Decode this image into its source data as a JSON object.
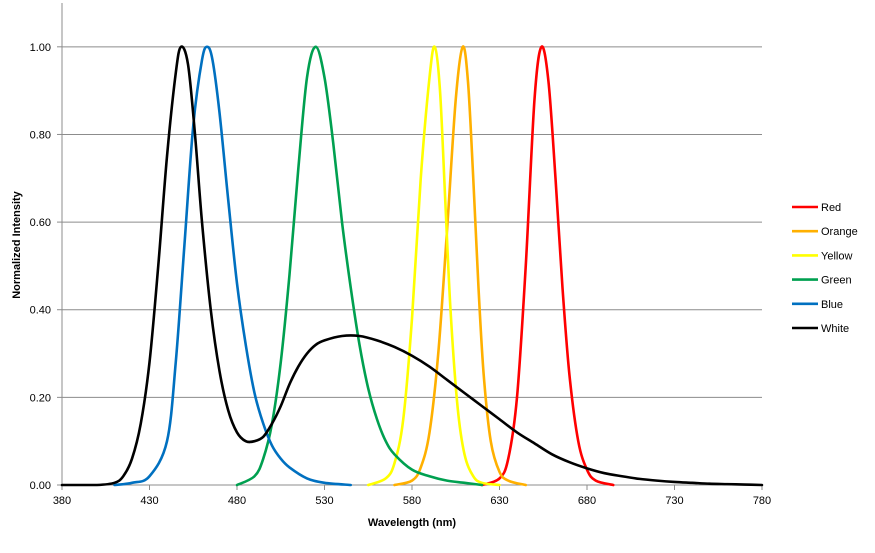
{
  "chart_data": {
    "type": "line",
    "title": "",
    "xlabel": "Wavelength (nm)",
    "ylabel": "Normalized Intensity",
    "xlim": [
      380,
      780
    ],
    "ylim": [
      0,
      1.1
    ],
    "x_ticks": [
      380,
      430,
      480,
      530,
      580,
      630,
      680,
      730,
      780
    ],
    "x_tick_labels": [
      "380",
      "430",
      "480",
      "530",
      "580",
      "630",
      "680",
      "730",
      "780"
    ],
    "y_ticks": [
      0,
      0.2,
      0.4,
      0.6,
      0.8,
      1.0
    ],
    "y_tick_labels": [
      "0.00",
      "0.20",
      "0.40",
      "0.60",
      "0.80",
      "1.00"
    ],
    "grid": "horizontal",
    "legend_position": "right",
    "series": [
      {
        "name": "Red",
        "color": "#ff0000",
        "points": [
          [
            620,
            0
          ],
          [
            630,
            0.015
          ],
          [
            635,
            0.06
          ],
          [
            640,
            0.2
          ],
          [
            645,
            0.5
          ],
          [
            650,
            0.88
          ],
          [
            654,
            1.0
          ],
          [
            658,
            0.92
          ],
          [
            662,
            0.7
          ],
          [
            666,
            0.45
          ],
          [
            670,
            0.25
          ],
          [
            675,
            0.1
          ],
          [
            680,
            0.035
          ],
          [
            685,
            0.01
          ],
          [
            695,
            0
          ]
        ]
      },
      {
        "name": "Orange",
        "color": "#ffb000",
        "points": [
          [
            570,
            0
          ],
          [
            580,
            0.01
          ],
          [
            585,
            0.04
          ],
          [
            590,
            0.12
          ],
          [
            595,
            0.3
          ],
          [
            600,
            0.58
          ],
          [
            605,
            0.88
          ],
          [
            609,
            1.0
          ],
          [
            612,
            0.92
          ],
          [
            615,
            0.7
          ],
          [
            618,
            0.45
          ],
          [
            621,
            0.25
          ],
          [
            625,
            0.1
          ],
          [
            630,
            0.03
          ],
          [
            635,
            0.01
          ],
          [
            645,
            0
          ]
        ]
      },
      {
        "name": "Yellow",
        "color": "#ffff00",
        "points": [
          [
            555,
            0
          ],
          [
            565,
            0.015
          ],
          [
            570,
            0.05
          ],
          [
            575,
            0.15
          ],
          [
            580,
            0.38
          ],
          [
            585,
            0.7
          ],
          [
            590,
            0.93
          ],
          [
            593,
            1.0
          ],
          [
            596,
            0.9
          ],
          [
            599,
            0.65
          ],
          [
            602,
            0.4
          ],
          [
            606,
            0.18
          ],
          [
            610,
            0.07
          ],
          [
            615,
            0.02
          ],
          [
            620,
            0.005
          ],
          [
            630,
            0
          ]
        ]
      },
      {
        "name": "Green",
        "color": "#00a050",
        "points": [
          [
            480,
            0
          ],
          [
            490,
            0.02
          ],
          [
            495,
            0.06
          ],
          [
            500,
            0.14
          ],
          [
            505,
            0.28
          ],
          [
            510,
            0.48
          ],
          [
            515,
            0.72
          ],
          [
            520,
            0.93
          ],
          [
            525,
            1.0
          ],
          [
            530,
            0.93
          ],
          [
            535,
            0.78
          ],
          [
            540,
            0.6
          ],
          [
            545,
            0.45
          ],
          [
            550,
            0.32
          ],
          [
            555,
            0.22
          ],
          [
            560,
            0.15
          ],
          [
            565,
            0.1
          ],
          [
            570,
            0.07
          ],
          [
            580,
            0.035
          ],
          [
            590,
            0.02
          ],
          [
            600,
            0.01
          ],
          [
            610,
            0.005
          ],
          [
            620,
            0
          ]
        ]
      },
      {
        "name": "Blue",
        "color": "#0070c0",
        "points": [
          [
            410,
            0
          ],
          [
            420,
            0.005
          ],
          [
            430,
            0.02
          ],
          [
            440,
            0.1
          ],
          [
            445,
            0.28
          ],
          [
            450,
            0.55
          ],
          [
            455,
            0.82
          ],
          [
            460,
            0.97
          ],
          [
            463,
            1.0
          ],
          [
            466,
            0.97
          ],
          [
            470,
            0.85
          ],
          [
            475,
            0.65
          ],
          [
            480,
            0.46
          ],
          [
            485,
            0.32
          ],
          [
            490,
            0.21
          ],
          [
            495,
            0.14
          ],
          [
            500,
            0.09
          ],
          [
            505,
            0.06
          ],
          [
            510,
            0.04
          ],
          [
            520,
            0.015
          ],
          [
            530,
            0.005
          ],
          [
            545,
            0
          ]
        ]
      },
      {
        "name": "White",
        "color": "#000000",
        "points": [
          [
            380,
            0
          ],
          [
            400,
            0
          ],
          [
            410,
            0.005
          ],
          [
            415,
            0.02
          ],
          [
            420,
            0.06
          ],
          [
            425,
            0.14
          ],
          [
            430,
            0.28
          ],
          [
            435,
            0.5
          ],
          [
            440,
            0.75
          ],
          [
            445,
            0.94
          ],
          [
            448,
            1.0
          ],
          [
            452,
            0.96
          ],
          [
            456,
            0.8
          ],
          [
            460,
            0.6
          ],
          [
            465,
            0.4
          ],
          [
            470,
            0.26
          ],
          [
            475,
            0.17
          ],
          [
            480,
            0.12
          ],
          [
            485,
            0.1
          ],
          [
            490,
            0.1
          ],
          [
            495,
            0.11
          ],
          [
            500,
            0.14
          ],
          [
            505,
            0.18
          ],
          [
            510,
            0.23
          ],
          [
            515,
            0.27
          ],
          [
            520,
            0.3
          ],
          [
            525,
            0.32
          ],
          [
            530,
            0.33
          ],
          [
            540,
            0.34
          ],
          [
            550,
            0.34
          ],
          [
            560,
            0.33
          ],
          [
            570,
            0.315
          ],
          [
            580,
            0.295
          ],
          [
            590,
            0.27
          ],
          [
            600,
            0.24
          ],
          [
            610,
            0.21
          ],
          [
            620,
            0.18
          ],
          [
            630,
            0.15
          ],
          [
            640,
            0.12
          ],
          [
            650,
            0.095
          ],
          [
            660,
            0.07
          ],
          [
            670,
            0.052
          ],
          [
            680,
            0.038
          ],
          [
            690,
            0.027
          ],
          [
            700,
            0.02
          ],
          [
            710,
            0.014
          ],
          [
            720,
            0.01
          ],
          [
            730,
            0.007
          ],
          [
            740,
            0.005
          ],
          [
            750,
            0.003
          ],
          [
            760,
            0.002
          ],
          [
            770,
            0.001
          ],
          [
            780,
            0
          ]
        ]
      }
    ]
  }
}
